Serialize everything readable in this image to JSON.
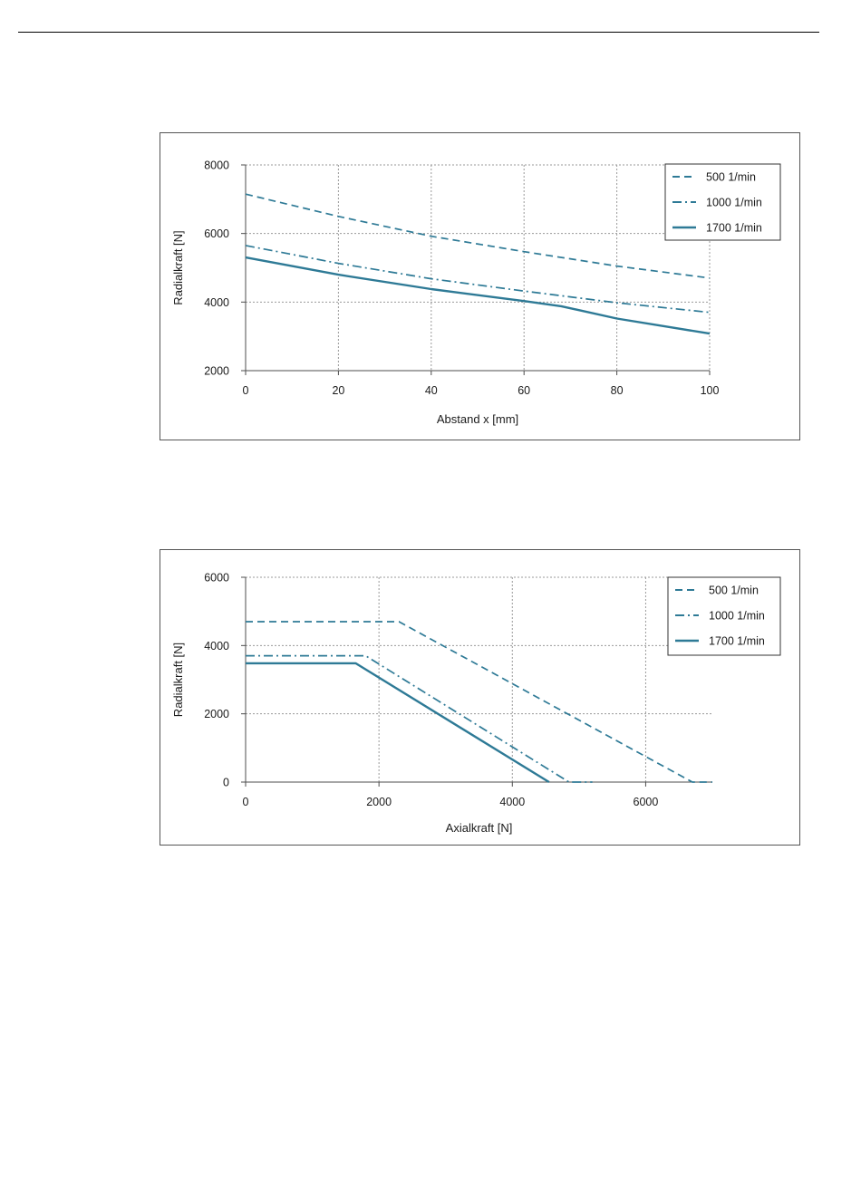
{
  "colors": {
    "series": "#2e7a96",
    "grid": "#9a9a9a",
    "axis": "#4d4d4d",
    "frame": "#555555"
  },
  "chart_data": [
    {
      "type": "line",
      "title": "",
      "xlabel": "Abstand x [mm]",
      "ylabel": "Radialkraft [N]",
      "xlim": [
        0,
        100
      ],
      "ylim": [
        2000,
        8000
      ],
      "xticks": [
        0,
        20,
        40,
        60,
        80,
        100
      ],
      "yticks": [
        2000,
        4000,
        6000,
        8000
      ],
      "grid": true,
      "legend_position": "top-right",
      "series": [
        {
          "name": "500  1/min",
          "line_style": "dashed",
          "x": [
            0,
            20,
            40,
            60,
            80,
            100
          ],
          "y": [
            7150,
            6500,
            5920,
            5470,
            5050,
            4700
          ]
        },
        {
          "name": "1000 1/min",
          "line_style": "dash-dot",
          "x": [
            0,
            20,
            40,
            60,
            80,
            100
          ],
          "y": [
            5650,
            5130,
            4680,
            4320,
            3980,
            3700
          ]
        },
        {
          "name": "1700 1/min",
          "line_style": "solid",
          "x": [
            0,
            20,
            40,
            60,
            68,
            80,
            100
          ],
          "y": [
            5300,
            4800,
            4380,
            4030,
            3880,
            3520,
            3080
          ]
        }
      ]
    },
    {
      "type": "line",
      "title": "",
      "xlabel": "Axialkraft [N]",
      "ylabel": "Radialkraft [N]",
      "xlim": [
        0,
        7000
      ],
      "ylim": [
        0,
        6000
      ],
      "xticks": [
        0,
        2000,
        4000,
        6000
      ],
      "yticks": [
        0,
        2000,
        4000,
        6000
      ],
      "grid": true,
      "legend_position": "top-right",
      "series": [
        {
          "name": "500  1/min",
          "line_style": "dashed",
          "x": [
            0,
            2300,
            6700,
            7000
          ],
          "y": [
            4700,
            4700,
            0,
            0
          ]
        },
        {
          "name": "1000 1/min",
          "line_style": "dash-dot",
          "x": [
            0,
            1800,
            4850,
            5200
          ],
          "y": [
            3700,
            3700,
            0,
            0
          ]
        },
        {
          "name": "1700 1/min",
          "line_style": "solid",
          "x": [
            0,
            1650,
            4550
          ],
          "y": [
            3480,
            3480,
            0
          ]
        }
      ]
    }
  ]
}
